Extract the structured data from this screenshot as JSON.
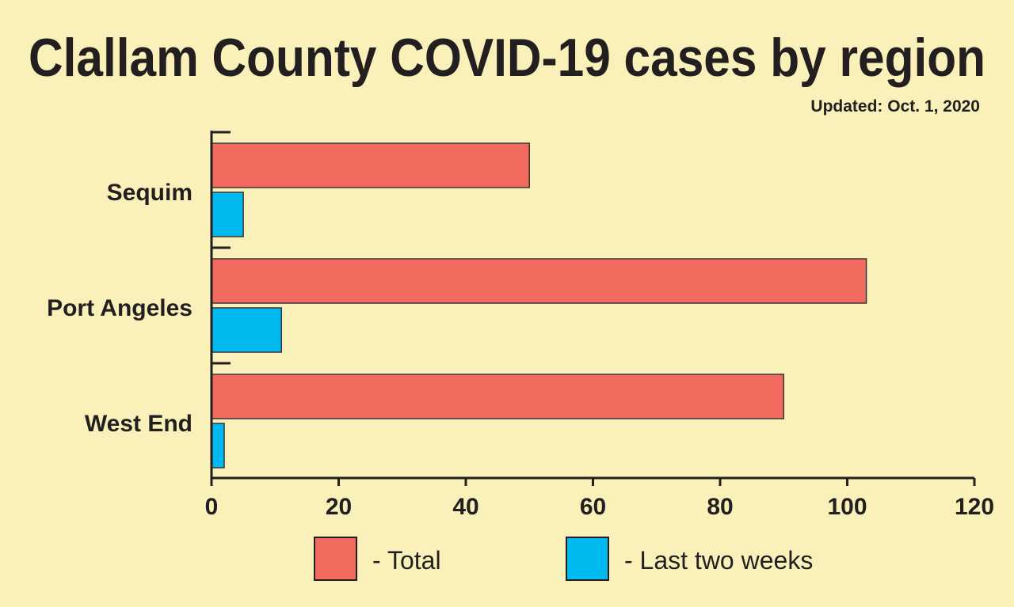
{
  "chart_data": {
    "type": "bar",
    "orientation": "horizontal",
    "title": "Clallam County COVID-19 cases by region",
    "subtitle": "Updated: Oct. 1, 2020",
    "categories": [
      "Sequim",
      "Port Angeles",
      "West End"
    ],
    "series": [
      {
        "name": "- Total",
        "color": "#f26b5e",
        "values": [
          50,
          103,
          90
        ]
      },
      {
        "name": "- Last two weeks",
        "color": "#00b9ef",
        "values": [
          5,
          11,
          2
        ]
      }
    ],
    "xlim": [
      0,
      120
    ],
    "xticks": [
      0,
      20,
      40,
      60,
      80,
      100,
      120
    ],
    "xlabel": "",
    "ylabel": "",
    "grid": false,
    "legend_position": "bottom",
    "background": "#f9f1b9"
  }
}
